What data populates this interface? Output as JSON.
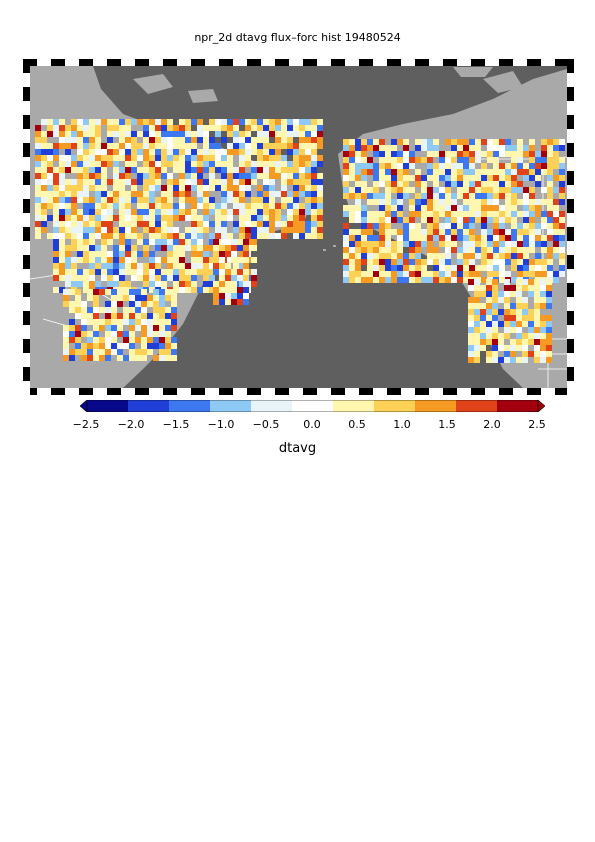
{
  "title": "npr_2d dtavg flux–forc hist 19480524",
  "colorbar": {
    "label": "dtavg",
    "ticks": [
      "−2.5",
      "−2.0",
      "−1.5",
      "−1.0",
      "−0.5",
      "0.0",
      "0.5",
      "1.0",
      "1.5",
      "2.0",
      "2.5"
    ],
    "range": [
      -2.5,
      2.5
    ],
    "colors": [
      "#08088a",
      "#1f3fd6",
      "#3d78f0",
      "#8ec8f5",
      "#e8f4f8",
      "#ffffff",
      "#fff6b0",
      "#fcd155",
      "#f59a23",
      "#e0421a",
      "#a3000f"
    ]
  },
  "map": {
    "ocean_color": "#5f5f5f",
    "land_color": "#a9a9a9",
    "border_color": "#ffffff",
    "frame": "black-white checkered"
  }
}
